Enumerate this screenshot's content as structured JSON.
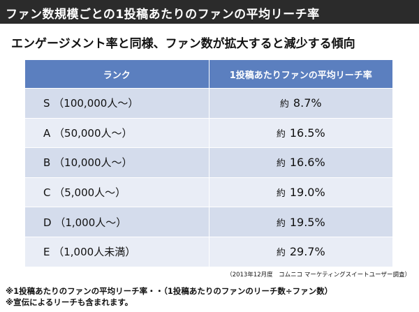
{
  "title": "ファン数規模ごとの1投稿あたりのファンの平均リーチ率",
  "subtitle": "エンゲージメント率と同様、ファン数が拡大すると減少する傾向",
  "table": {
    "headers": [
      "ランク",
      "1投稿あたりファンの平均リーチ率"
    ],
    "rows": [
      {
        "rank": "S （100,000人～）",
        "prefix": "約",
        "value": "8.7%"
      },
      {
        "rank": "A （50,000人～）",
        "prefix": "約",
        "value": "16.5%"
      },
      {
        "rank": "B （10,000人～）",
        "prefix": "約",
        "value": "16.6%"
      },
      {
        "rank": "C （5,000人～）",
        "prefix": "約",
        "value": "19.0%"
      },
      {
        "rank": "D （1,000人～）",
        "prefix": "約",
        "value": "19.5%"
      },
      {
        "rank": "E （1,000人未満）",
        "prefix": "約",
        "value": "29.7%"
      }
    ]
  },
  "source": "（2013年12月度　コムニコ マーケティングスイートユーザー調査）",
  "notes": [
    "※1投稿あたりのファンの平均リーチ率・・（1投稿あたりのファンのリーチ数÷ファン数）",
    "※宣伝によるリーチも含まれます。"
  ],
  "colors": {
    "title_bg": "#2b2b2b",
    "header_bg": "#5b7fbf",
    "row_dark": "#d4dcec",
    "row_light": "#e9edf6"
  }
}
